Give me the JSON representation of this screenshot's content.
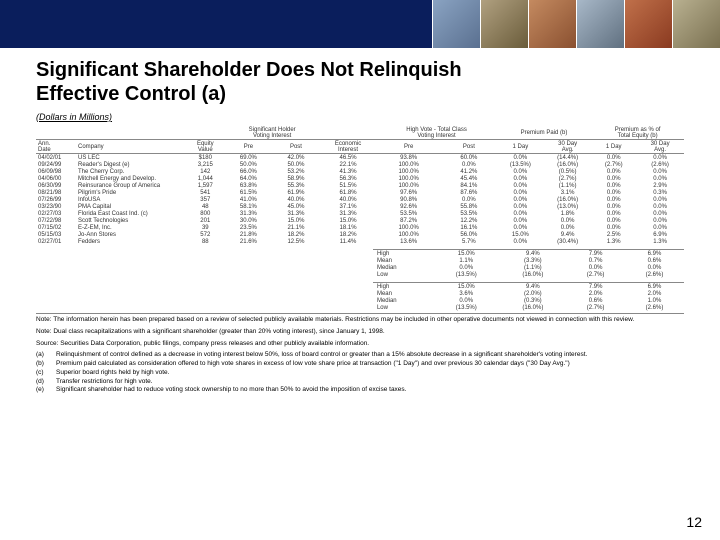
{
  "header": {
    "brand_color": "#0a1e5c",
    "image_count": 6
  },
  "title_line1": "Significant Shareholder Does Not Relinquish",
  "title_line2": "Effective Control (a)",
  "subtitle": "(Dollars in Millions)",
  "columns": {
    "group_headers": [
      "",
      "",
      "",
      "Significant Holder",
      "",
      "High Vote - Total Class",
      "Premium Paid (b)",
      "Premium as % of Total Equity (b)"
    ],
    "sub_headers": [
      "Ann. Date",
      "Company",
      "Equity Value",
      "Voting Interest Pre",
      "Voting Interest Post",
      "Economic Interest",
      "Voting Interest Pre",
      "Voting Interest Post",
      "1 Day",
      "30 Day Avg.",
      "1 Day",
      "30 Day Avg."
    ]
  },
  "rows": [
    {
      "date": "04/02/01",
      "company": "US LEC",
      "equity": "$180",
      "vi_pre": "69.0%",
      "vi_post": "42.0%",
      "econ": "46.5%",
      "hv_pre": "93.8%",
      "hv_post": "60.0%",
      "p1": "0.0%",
      "p30": "(14.4%)",
      "e1": "0.0%",
      "e30": "0.0%"
    },
    {
      "date": "09/24/99",
      "company": "Reader's Digest (e)",
      "equity": "3,215",
      "vi_pre": "50.0%",
      "vi_post": "50.0%",
      "econ": "22.1%",
      "hv_pre": "100.0%",
      "hv_post": "0.0%",
      "p1": "(13.5%)",
      "p30": "(16.0%)",
      "e1": "(2.7%)",
      "e30": "(2.6%)"
    },
    {
      "date": "06/09/98",
      "company": "The Cherry Corp.",
      "equity": "142",
      "vi_pre": "66.0%",
      "vi_post": "53.2%",
      "econ": "41.3%",
      "hv_pre": "100.0%",
      "hv_post": "41.2%",
      "p1": "0.0%",
      "p30": "(0.5%)",
      "e1": "0.0%",
      "e30": "0.0%"
    },
    {
      "date": "04/06/00",
      "company": "Mitchell Energy and Develop.",
      "equity": "1,044",
      "vi_pre": "64.0%",
      "vi_post": "58.9%",
      "econ": "56.3%",
      "hv_pre": "100.0%",
      "hv_post": "45.4%",
      "p1": "0.0%",
      "p30": "(2.7%)",
      "e1": "0.0%",
      "e30": "0.0%"
    },
    {
      "date": "06/30/99",
      "company": "Reinsurance Group of America",
      "equity": "1,597",
      "vi_pre": "63.8%",
      "vi_post": "55.3%",
      "econ": "51.5%",
      "hv_pre": "100.0%",
      "hv_post": "84.1%",
      "p1": "0.0%",
      "p30": "(1.1%)",
      "e1": "0.0%",
      "e30": "2.9%"
    },
    {
      "date": "08/21/98",
      "company": "Pilgrim's Pride",
      "equity": "541",
      "vi_pre": "61.5%",
      "vi_post": "61.9%",
      "econ": "61.8%",
      "hv_pre": "97.6%",
      "hv_post": "87.6%",
      "p1": "0.0%",
      "p30": "3.1%",
      "e1": "0.0%",
      "e30": "0.3%"
    },
    {
      "date": "07/26/99",
      "company": "InfoUSA",
      "equity": "357",
      "vi_pre": "41.0%",
      "vi_post": "40.0%",
      "econ": "40.0%",
      "hv_pre": "90.8%",
      "hv_post": "0.0%",
      "p1": "0.0%",
      "p30": "(16.0%)",
      "e1": "0.0%",
      "e30": "0.0%"
    },
    {
      "date": "03/23/90",
      "company": "PMA Capital",
      "equity": "48",
      "vi_pre": "58.1%",
      "vi_post": "45.0%",
      "econ": "37.1%",
      "hv_pre": "92.6%",
      "hv_post": "55.8%",
      "p1": "0.0%",
      "p30": "(13.0%)",
      "e1": "0.0%",
      "e30": "0.0%"
    },
    {
      "date": "02/27/03",
      "company": "Florida East Coast Ind. (c)",
      "equity": "800",
      "vi_pre": "31.3%",
      "vi_post": "31.3%",
      "econ": "31.3%",
      "hv_pre": "53.5%",
      "hv_post": "53.5%",
      "p1": "0.0%",
      "p30": "1.8%",
      "e1": "0.0%",
      "e30": "0.0%"
    },
    {
      "date": "07/22/98",
      "company": "Scott Technologies",
      "equity": "201",
      "vi_pre": "30.0%",
      "vi_post": "15.0%",
      "econ": "15.0%",
      "hv_pre": "87.2%",
      "hv_post": "12.2%",
      "p1": "0.0%",
      "p30": "0.0%",
      "e1": "0.0%",
      "e30": "0.0%"
    },
    {
      "date": "07/15/02",
      "company": "E-Z-EM, Inc.",
      "equity": "39",
      "vi_pre": "23.5%",
      "vi_post": "21.1%",
      "econ": "18.1%",
      "hv_pre": "100.0%",
      "hv_post": "16.1%",
      "p1": "0.0%",
      "p30": "0.0%",
      "e1": "0.0%",
      "e30": "0.0%"
    },
    {
      "date": "05/15/03",
      "company": "Jo-Ann Stores",
      "equity": "572",
      "vi_pre": "21.8%",
      "vi_post": "18.2%",
      "econ": "18.2%",
      "hv_pre": "100.0%",
      "hv_post": "56.0%",
      "p1": "15.0%",
      "p30": "9.4%",
      "e1": "2.5%",
      "e30": "6.9%"
    },
    {
      "date": "02/27/01",
      "company": "Fedders",
      "equity": "88",
      "vi_pre": "21.6%",
      "vi_post": "12.5%",
      "econ": "11.4%",
      "hv_pre": "13.6%",
      "hv_post": "5.7%",
      "p1": "0.0%",
      "p30": "(30.4%)",
      "e1": "1.3%",
      "e30": "1.3%"
    }
  ],
  "summary1": {
    "rows": [
      {
        "label": "High",
        "a": "15.0%",
        "b": "9.4%",
        "c": "7.9%",
        "d": "6.9%"
      },
      {
        "label": "Mean",
        "a": "1.1%",
        "b": "(3.3%)",
        "c": "0.7%",
        "d": "0.6%"
      },
      {
        "label": "Median",
        "a": "0.0%",
        "b": "(1.1%)",
        "c": "0.0%",
        "d": "0.0%"
      },
      {
        "label": "Low",
        "a": "(13.5%)",
        "b": "(16.0%)",
        "c": "(2.7%)",
        "d": "(2.6%)"
      }
    ]
  },
  "summary2": {
    "rows": [
      {
        "label": "High",
        "a": "15.0%",
        "b": "9.4%",
        "c": "7.9%",
        "d": "6.9%"
      },
      {
        "label": "Mean",
        "a": "3.6%",
        "b": "(2.0%)",
        "c": "2.0%",
        "d": "2.0%"
      },
      {
        "label": "Median",
        "a": "0.0%",
        "b": "(0.3%)",
        "c": "0.6%",
        "d": "1.0%"
      },
      {
        "label": "Low",
        "a": "(13.5%)",
        "b": "(16.0%)",
        "c": "(2.7%)",
        "d": "(2.6%)"
      }
    ]
  },
  "notes": {
    "main": "Note:  The information herein has been prepared based on a review of selected publicly available materials. Restrictions may be included in other operative documents not viewed in connection with this review.",
    "note2": "Note:  Dual class recapitalizations with a significant shareholder (greater than 20% voting interest), since January 1, 1998.",
    "source": "Source:  Securities Data Corporation, public filings, company press releases and other publicly available information.",
    "items": [
      {
        "key": "(a)",
        "text": "Relinquishment of control defined as a decrease in voting interest below 50%, loss of board control or greater than a 15% absolute decrease in a significant shareholder's voting interest."
      },
      {
        "key": "(b)",
        "text": "Premium paid calculated as consideration offered to high vote shares in excess of low vote share price at transaction (\"1 Day\") and over previous 30 calendar days (\"30 Day Avg.\")"
      },
      {
        "key": "(c)",
        "text": "Superior board rights held by high vote."
      },
      {
        "key": "(d)",
        "text": "Transfer restrictions for high vote."
      },
      {
        "key": "(e)",
        "text": "Significant shareholder had to reduce voting stock ownership to no more than 50% to avoid the imposition of excise taxes."
      }
    ]
  },
  "page_number": "12"
}
